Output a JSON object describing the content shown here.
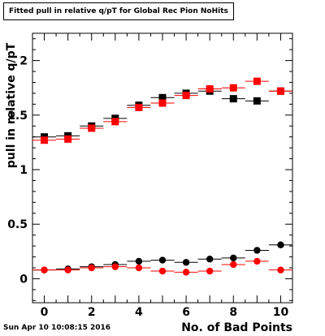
{
  "chart_data": {
    "type": "scatter",
    "title": "Fitted pull in relative q/pT for Global Rec Pion NoHits",
    "xlabel": "No. of Bad Points",
    "ylabel": "pull in relative q/pT",
    "xlim": [
      -0.5,
      10.5
    ],
    "ylim": [
      -0.22,
      2.25
    ],
    "x_ticks": [
      0,
      2,
      4,
      6,
      8,
      10
    ],
    "y_ticks": [
      0,
      0.5,
      1,
      1.5,
      2
    ],
    "y_tick_labels": [
      "0",
      "0.5",
      "1",
      "1.5",
      "2"
    ],
    "x": [
      0,
      1,
      2,
      3,
      4,
      5,
      6,
      7,
      8,
      9,
      10
    ],
    "series": [
      {
        "marker": "square",
        "color": "#000000",
        "values": [
          1.3,
          1.31,
          1.4,
          1.47,
          1.59,
          1.66,
          1.7,
          1.72,
          1.65,
          1.63,
          1.72
        ]
      },
      {
        "marker": "square",
        "color": "#ff0000",
        "values": [
          1.27,
          1.28,
          1.38,
          1.44,
          1.57,
          1.61,
          1.68,
          1.74,
          1.75,
          1.81,
          1.72
        ]
      },
      {
        "marker": "circle",
        "color": "#000000",
        "values": [
          0.08,
          0.09,
          0.11,
          0.13,
          0.16,
          0.17,
          0.15,
          0.18,
          0.19,
          0.26,
          0.31
        ]
      },
      {
        "marker": "circle",
        "color": "#ff0000",
        "values": [
          0.08,
          0.08,
          0.1,
          0.11,
          0.1,
          0.07,
          0.06,
          0.07,
          0.13,
          0.16,
          0.08
        ]
      }
    ],
    "grid": false,
    "legend": "none"
  },
  "footer_text": "Sun Apr 10 10:08:15 2016"
}
